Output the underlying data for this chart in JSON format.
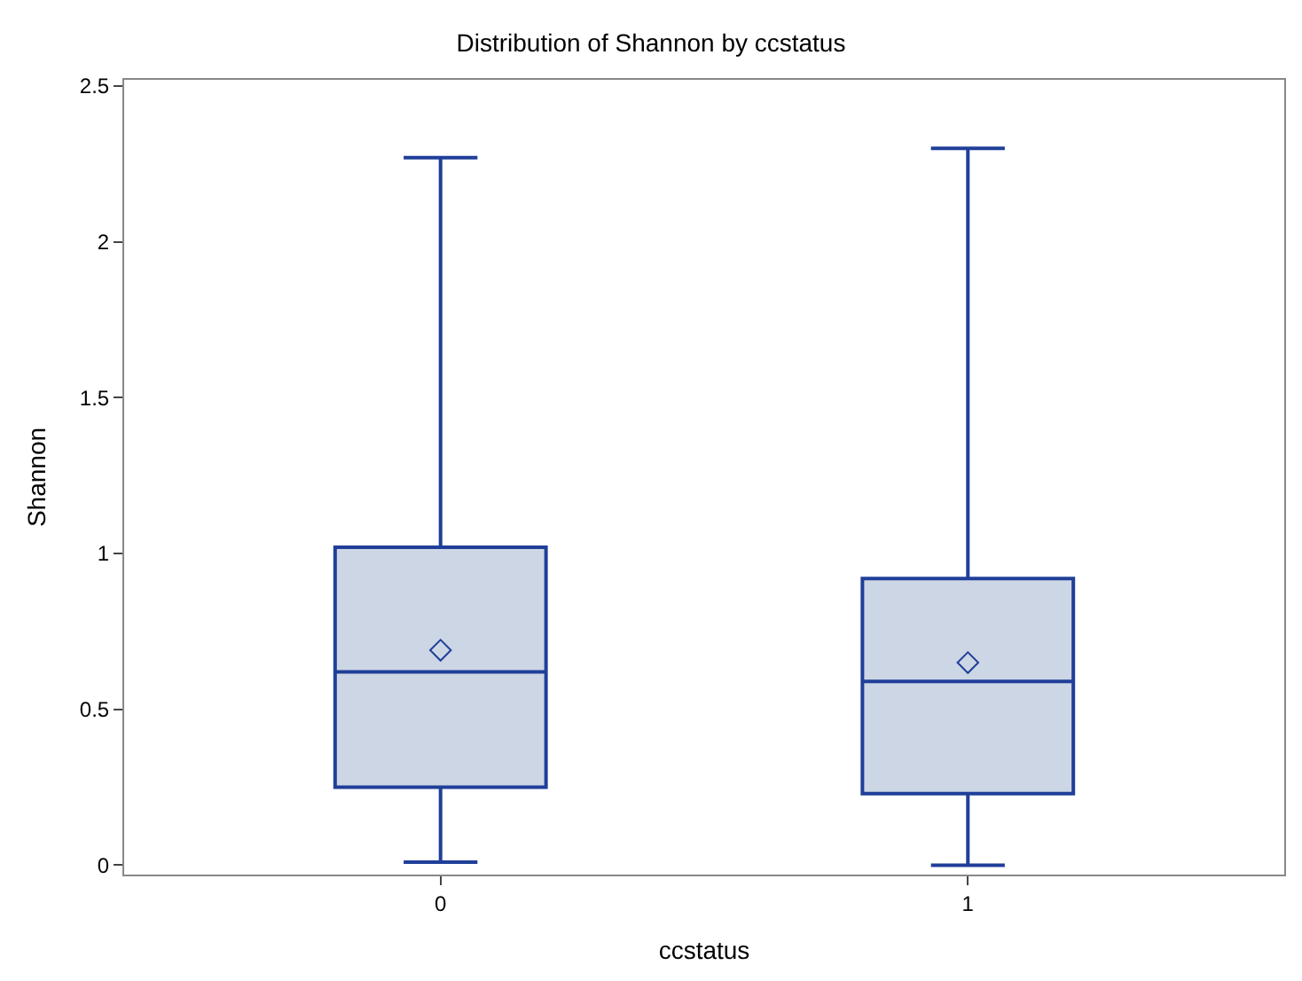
{
  "chart_data": {
    "type": "box",
    "title": "Distribution of Shannon by ccstatus",
    "xlabel": "ccstatus",
    "ylabel": "Shannon",
    "categories": [
      "0",
      "1"
    ],
    "boxes": [
      {
        "low": 0.01,
        "q1": 0.25,
        "median": 0.62,
        "q3": 1.02,
        "high": 2.27,
        "mean": 0.69
      },
      {
        "low": 0.0,
        "q1": 0.23,
        "median": 0.59,
        "q3": 0.92,
        "high": 2.3,
        "mean": 0.65
      }
    ],
    "color": "#1f3f99",
    "ylim": [
      -0.03,
      2.52
    ],
    "yticks": [
      0,
      0.5,
      1,
      1.5,
      2,
      2.5
    ]
  }
}
